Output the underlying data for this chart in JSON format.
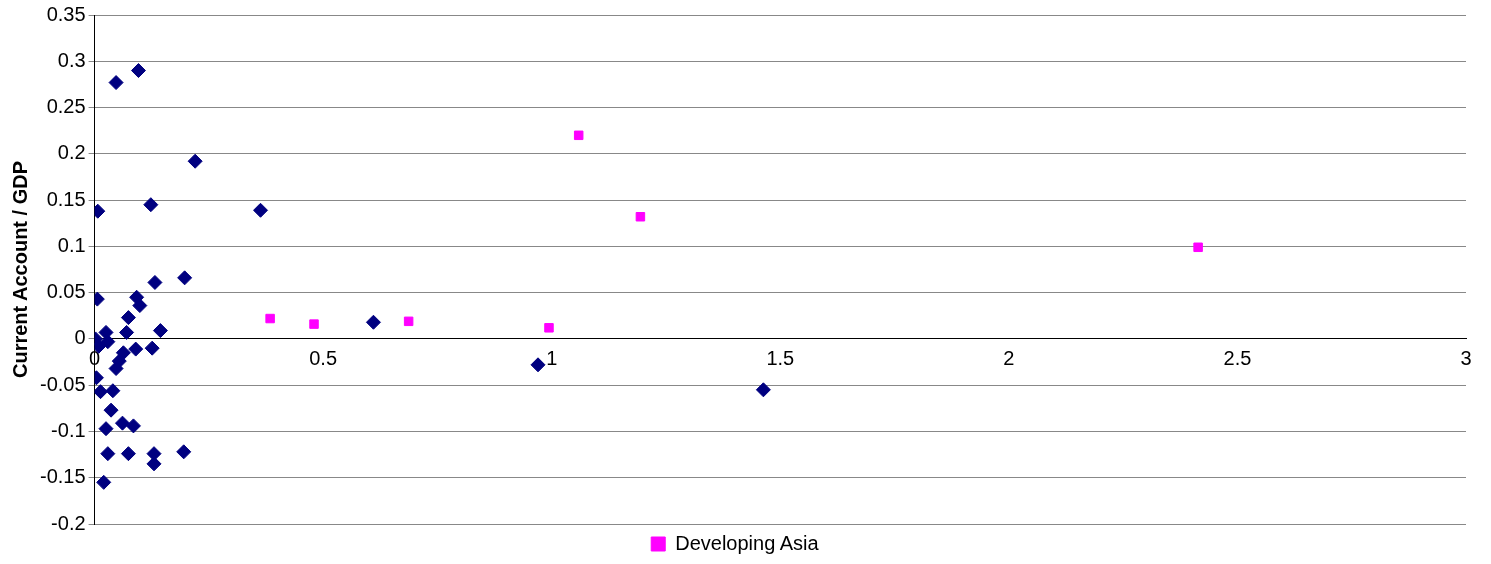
{
  "chart_data": {
    "type": "scatter",
    "ylabel": "Current Account / GDP",
    "xlim": [
      0,
      3
    ],
    "xticks": [
      0,
      0.5,
      1,
      1.5,
      2,
      2.5,
      3
    ],
    "ylim": [
      -0.2,
      0.35
    ],
    "yticks": [
      -0.2,
      -0.15,
      -0.1,
      -0.05,
      0,
      0.05,
      0.1,
      0.15,
      0.2,
      0.25,
      0.3,
      0.35
    ],
    "grid": "y",
    "legend": "bottom",
    "series": [
      {
        "color": "#000080",
        "marker": "diamond",
        "x": [
          0.006,
          0.132,
          0.197,
          0.092,
          0.099,
          0.074,
          0.07,
          0.144,
          0.025,
          0.002,
          0.009,
          0.029,
          0.126,
          0.09,
          0.063,
          0.054,
          0.047,
          0.004,
          0.013,
          0.04,
          0.036,
          0.025,
          0.061,
          0.085,
          0.029,
          0.074,
          0.13,
          0.13,
          0.195,
          0.02,
          0.047,
          0.096,
          0.22,
          0.123,
          0.007,
          0.363,
          0.61,
          0.97,
          1.463
        ],
        "values": [
          0.043,
          0.061,
          0.066,
          0.045,
          0.036,
          0.023,
          0.007,
          0.009,
          0.007,
          0.0,
          -0.008,
          -0.003,
          -0.01,
          -0.011,
          -0.015,
          -0.024,
          -0.032,
          -0.042,
          -0.057,
          -0.056,
          -0.077,
          -0.097,
          -0.091,
          -0.094,
          -0.124,
          -0.124,
          -0.124,
          -0.135,
          -0.122,
          -0.155,
          0.277,
          0.29,
          0.192,
          0.145,
          0.138,
          0.139,
          0.018,
          -0.028,
          -0.055
        ]
      },
      {
        "name": "Developing Asia",
        "color": "#ff00ff",
        "marker": "square",
        "x": [
          0.384,
          0.48,
          0.687,
          0.994,
          1.059,
          1.194,
          2.414
        ],
        "values": [
          0.022,
          0.016,
          0.019,
          0.012,
          0.22,
          0.132,
          0.099
        ]
      }
    ]
  }
}
